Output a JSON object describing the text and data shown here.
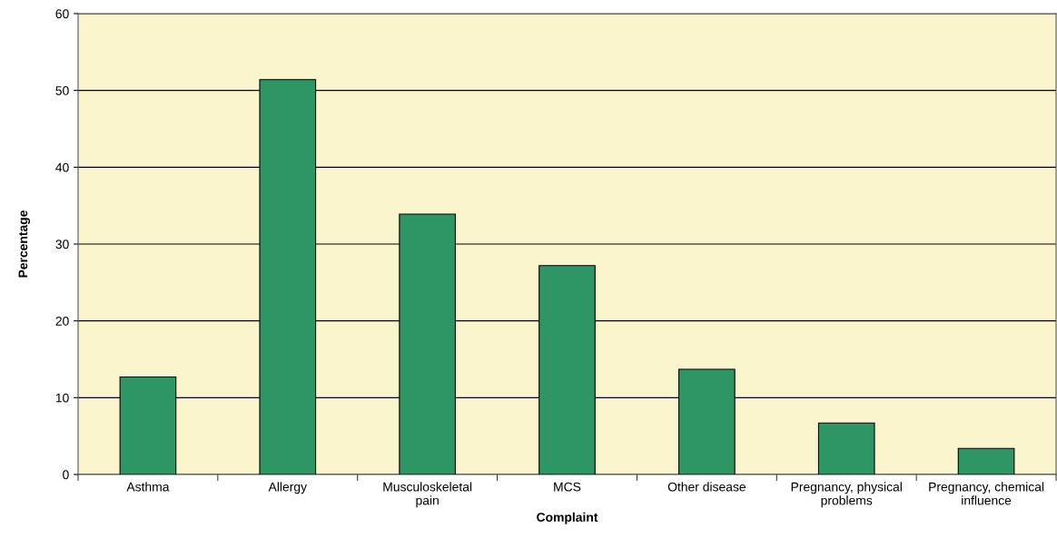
{
  "chart_data": {
    "type": "bar",
    "xlabel": "Complaint",
    "ylabel": "Percentage",
    "categories": [
      "Asthma",
      "Allergy",
      "Musculoskeletal\npain",
      "MCS",
      "Other disease",
      "Pregnancy, physical\nproblems",
      "Pregnancy, chemical\ninfluence"
    ],
    "values": [
      12.7,
      51.4,
      33.9,
      27.2,
      13.7,
      6.7,
      3.4
    ],
    "color": "#2e9665",
    "ylim": [
      0,
      60
    ],
    "yticks": [
      0,
      10,
      20,
      30,
      40,
      50,
      60
    ],
    "grid": "y"
  }
}
